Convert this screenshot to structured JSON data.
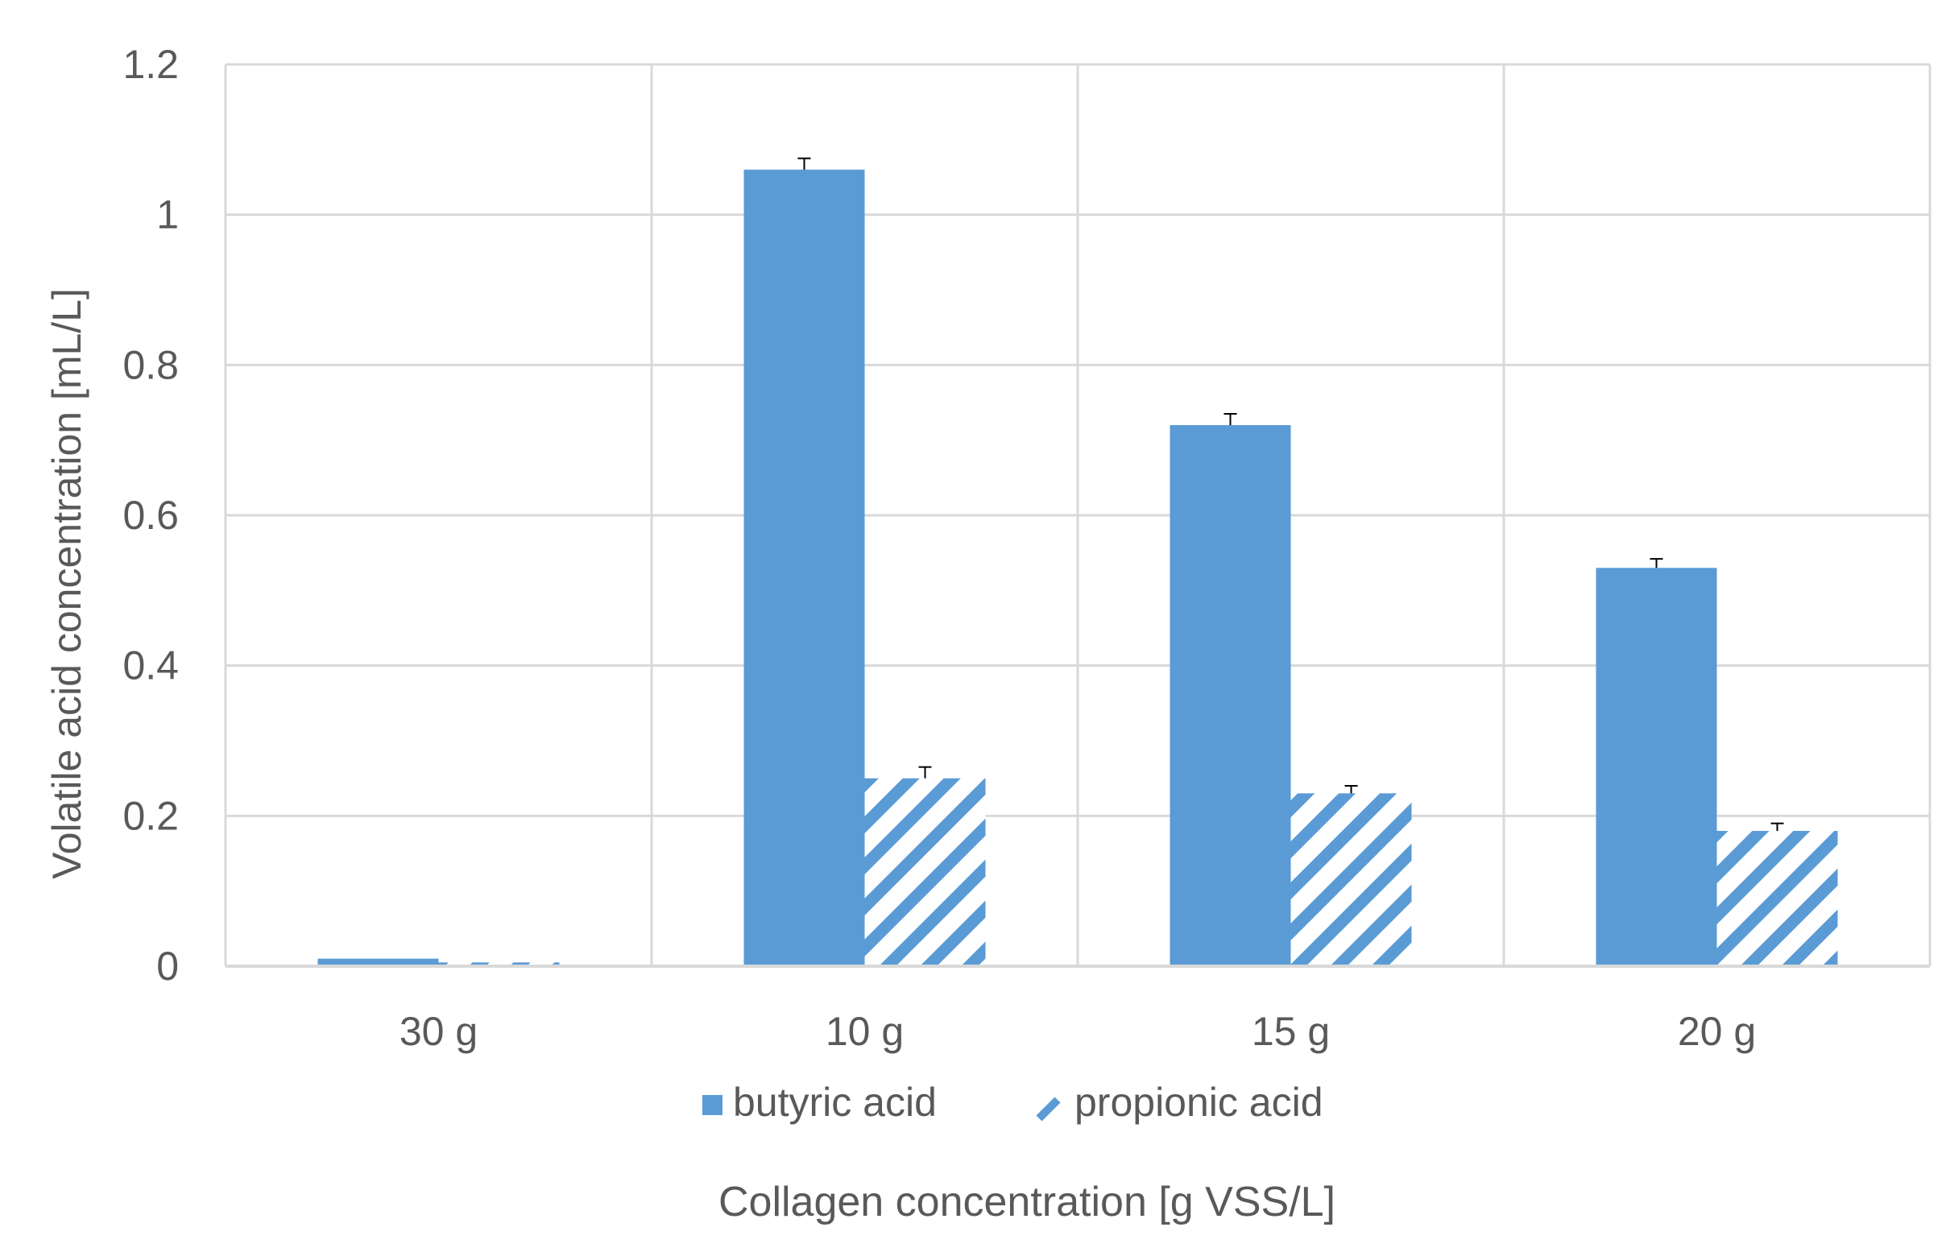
{
  "chart_data": {
    "type": "bar",
    "title": "",
    "xlabel": "Collagen concentration [g VSS/L]",
    "ylabel": "Volatile acid concentration  [mL/L]",
    "categories": [
      "30 g",
      "10 g",
      "15 g",
      "20 g"
    ],
    "ylim": [
      0,
      1.2
    ],
    "yticks": [
      "0",
      "0.2",
      "0.4",
      "0.6",
      "0.8",
      "1",
      "1.2"
    ],
    "grid": true,
    "legend_position": "bottom",
    "series": [
      {
        "name": "butyric acid",
        "values": [
          0.01,
          1.06,
          0.72,
          0.53
        ],
        "errors": [
          0,
          0.015,
          0.015,
          0.012
        ],
        "color": "#5b9bd5",
        "pattern": "solid"
      },
      {
        "name": "propionic acid",
        "values": [
          0.005,
          0.25,
          0.23,
          0.18
        ],
        "errors": [
          0,
          0.015,
          0.01,
          0.01
        ],
        "color": "#5b9bd5",
        "pattern": "diagonal-hatch"
      }
    ]
  }
}
